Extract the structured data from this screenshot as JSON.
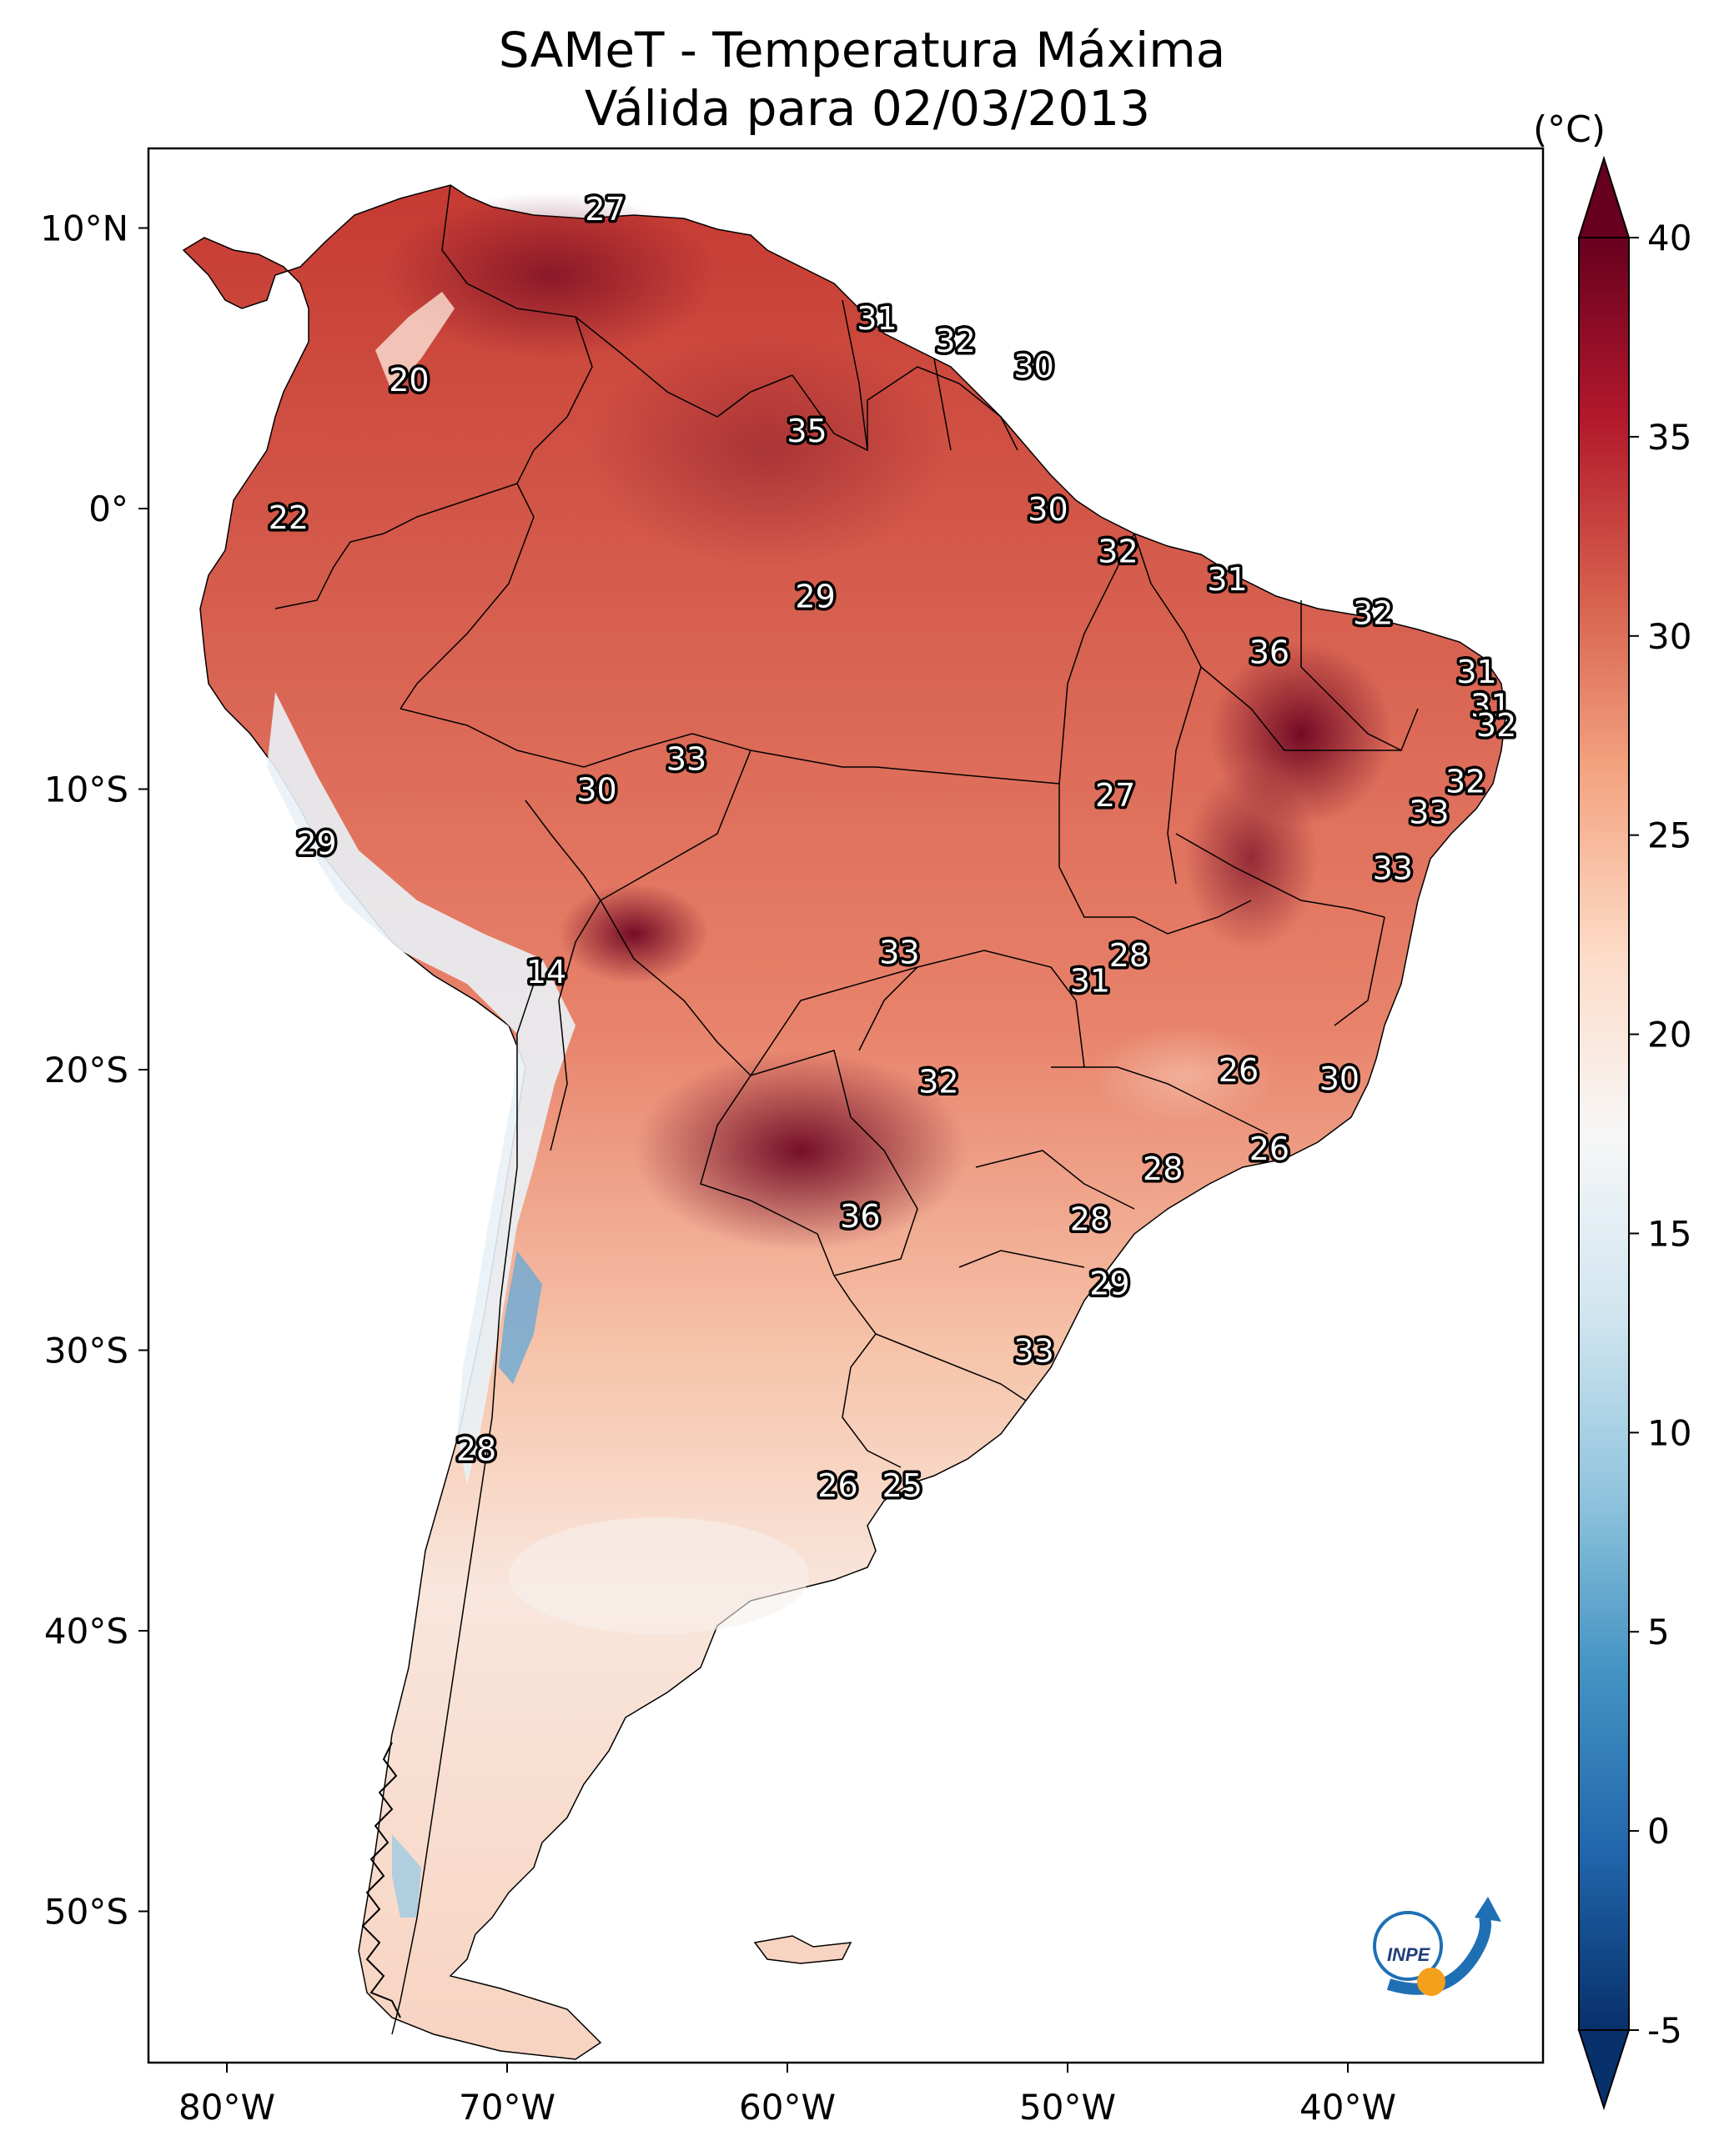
{
  "title": "SAMeT - Temperatura Máxima",
  "subtitle": "Válida para 02/03/2013",
  "colorbar": {
    "unit": "(°C)",
    "ticks": [
      "40",
      "35",
      "30",
      "25",
      "20",
      "15",
      "10",
      "5",
      "0",
      "-5"
    ],
    "min": -5,
    "max": 40,
    "colors": [
      "#08306b",
      "#2166ac",
      "#4393c3",
      "#92c5de",
      "#d1e5f0",
      "#f7f7f7",
      "#fddbc7",
      "#f4a582",
      "#d6604d",
      "#b2182b",
      "#67001f"
    ]
  },
  "axes": {
    "lon_labels": [
      "80°W",
      "70°W",
      "60°W",
      "50°W",
      "40°W"
    ],
    "lat_labels": [
      "10°N",
      "0°",
      "10°S",
      "20°S",
      "30°S",
      "40°S",
      "50°S"
    ]
  },
  "map_labels": [
    {
      "text": "27",
      "lon": -66.5,
      "lat": 10.7
    },
    {
      "text": "31",
      "lon": -56.8,
      "lat": 6.8
    },
    {
      "text": "32",
      "lon": -54.0,
      "lat": 6.0
    },
    {
      "text": "30",
      "lon": -51.2,
      "lat": 5.1
    },
    {
      "text": "20",
      "lon": -73.5,
      "lat": 4.6
    },
    {
      "text": "35",
      "lon": -59.3,
      "lat": 2.8
    },
    {
      "text": "22",
      "lon": -77.8,
      "lat": -0.3
    },
    {
      "text": "30",
      "lon": -50.7,
      "lat": 0.0
    },
    {
      "text": "32",
      "lon": -48.2,
      "lat": -1.5
    },
    {
      "text": "29",
      "lon": -59.0,
      "lat": -3.1
    },
    {
      "text": "31",
      "lon": -44.3,
      "lat": -2.5
    },
    {
      "text": "32",
      "lon": -39.1,
      "lat": -3.7
    },
    {
      "text": "36",
      "lon": -42.8,
      "lat": -5.1
    },
    {
      "text": "31",
      "lon": -35.4,
      "lat": -5.8
    },
    {
      "text": "31",
      "lon": -34.9,
      "lat": -7.0
    },
    {
      "text": "32",
      "lon": -34.7,
      "lat": -7.7
    },
    {
      "text": "33",
      "lon": -63.6,
      "lat": -8.9
    },
    {
      "text": "30",
      "lon": -66.8,
      "lat": -10.0
    },
    {
      "text": "32",
      "lon": -35.8,
      "lat": -9.7
    },
    {
      "text": "27",
      "lon": -48.3,
      "lat": -10.2
    },
    {
      "text": "33",
      "lon": -37.1,
      "lat": -10.8
    },
    {
      "text": "29",
      "lon": -76.8,
      "lat": -11.9
    },
    {
      "text": "33",
      "lon": -38.4,
      "lat": -12.8
    },
    {
      "text": "33",
      "lon": -56.0,
      "lat": -15.8
    },
    {
      "text": "28",
      "lon": -47.8,
      "lat": -15.9
    },
    {
      "text": "31",
      "lon": -49.2,
      "lat": -16.8
    },
    {
      "text": "14",
      "lon": -68.6,
      "lat": -16.5
    },
    {
      "text": "26",
      "lon": -43.9,
      "lat": -20.0
    },
    {
      "text": "30",
      "lon": -40.3,
      "lat": -20.3
    },
    {
      "text": "32",
      "lon": -54.6,
      "lat": -20.4
    },
    {
      "text": "26",
      "lon": -42.8,
      "lat": -22.8
    },
    {
      "text": "28",
      "lon": -46.6,
      "lat": -23.5
    },
    {
      "text": "36",
      "lon": -57.4,
      "lat": -25.2
    },
    {
      "text": "28",
      "lon": -49.2,
      "lat": -25.3
    },
    {
      "text": "29",
      "lon": -48.5,
      "lat": -27.6
    },
    {
      "text": "33",
      "lon": -51.2,
      "lat": -30.0
    },
    {
      "text": "28",
      "lon": -71.1,
      "lat": -33.5
    },
    {
      "text": "26",
      "lon": -58.2,
      "lat": -34.8
    },
    {
      "text": "25",
      "lon": -55.9,
      "lat": -34.8
    }
  ],
  "logo": {
    "text": "INPE"
  }
}
